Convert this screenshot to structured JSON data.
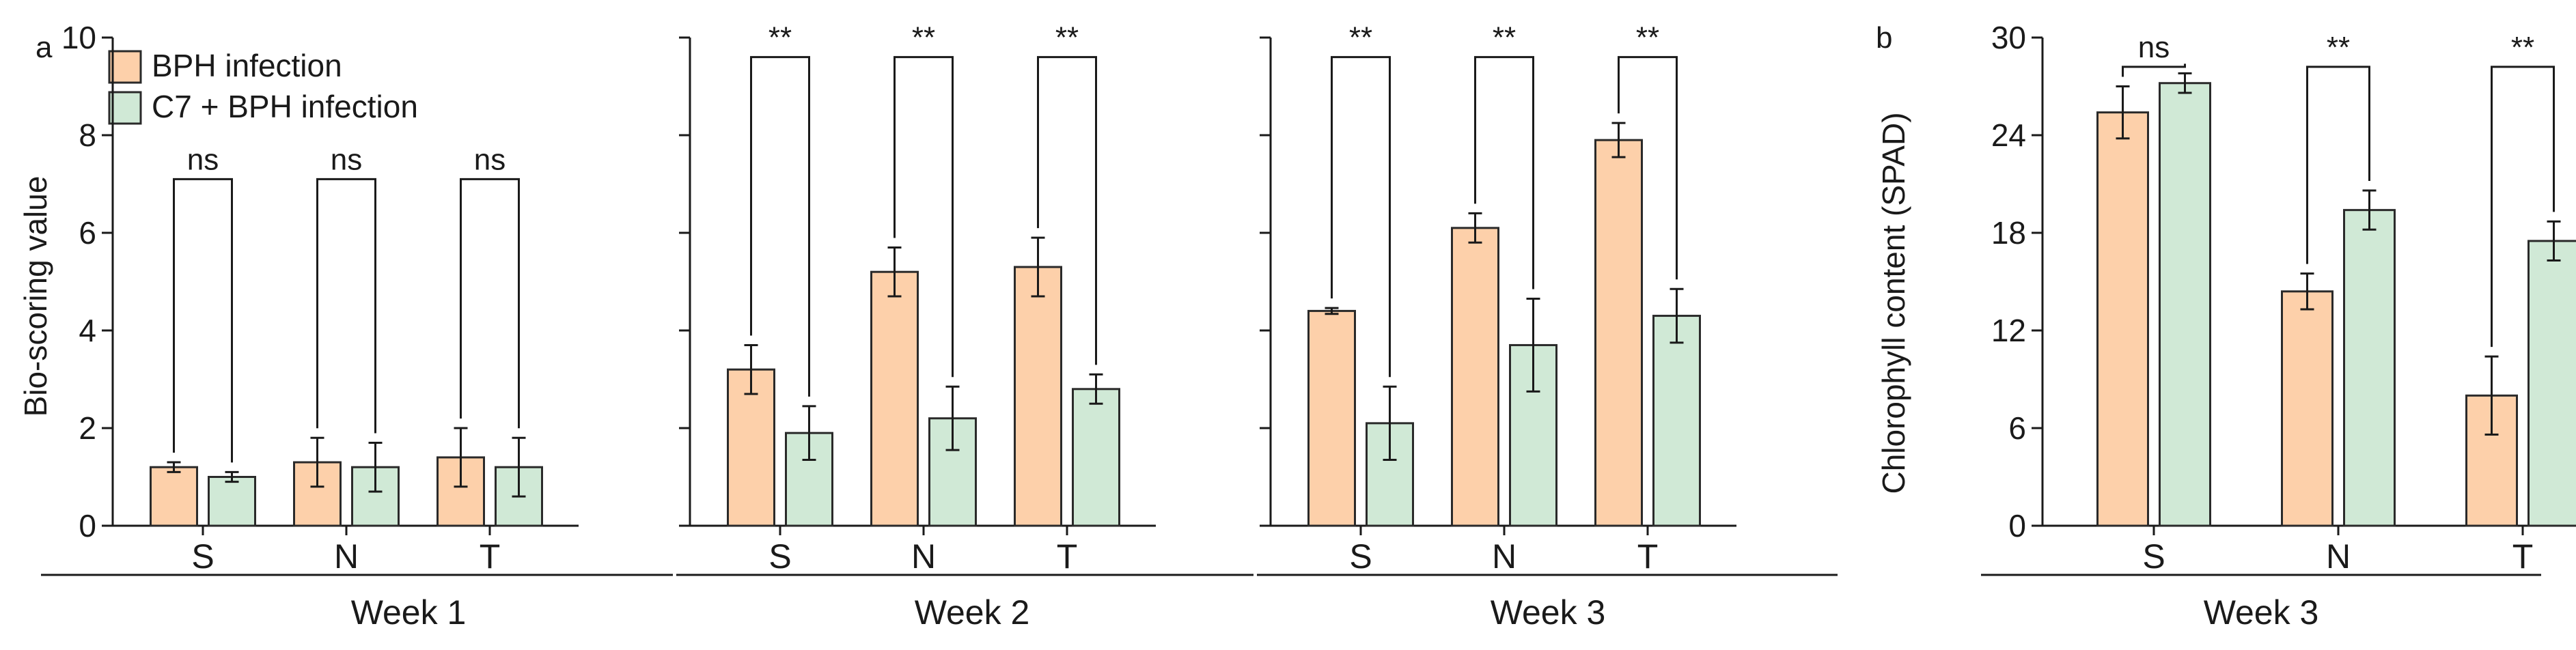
{
  "colors": {
    "bph_fill": "#FDD0AA",
    "c7_fill": "#D0E9D6",
    "bar_stroke": "#2a2a2a",
    "axis": "#1a1a1a"
  },
  "legend": {
    "items": [
      {
        "label": "BPH infection",
        "color": "#FDD0AA"
      },
      {
        "label": "C7 + BPH infection",
        "color": "#D0E9D6"
      }
    ]
  },
  "chart_data": [
    {
      "panel": "a",
      "type": "bar",
      "ylabel": "Bio-scoring value",
      "ylim": [
        0,
        10
      ],
      "yticks": [
        0,
        2,
        4,
        6,
        8,
        10
      ],
      "groups": [
        {
          "label": "Week 1",
          "categories": [
            "S",
            "N",
            "T"
          ],
          "series": [
            {
              "name": "BPH infection",
              "values": [
                1.2,
                1.3,
                1.4
              ],
              "errors": [
                0.1,
                0.5,
                0.6
              ]
            },
            {
              "name": "C7 + BPH infection",
              "values": [
                1.0,
                1.2,
                1.2
              ],
              "errors": [
                0.1,
                0.5,
                0.6
              ]
            }
          ],
          "significance": [
            "ns",
            "ns",
            "ns"
          ],
          "bracket_y": [
            7.1,
            7.1,
            7.1
          ]
        },
        {
          "label": "Week 2",
          "categories": [
            "S",
            "N",
            "T"
          ],
          "series": [
            {
              "name": "BPH infection",
              "values": [
                3.2,
                5.2,
                5.3
              ],
              "errors": [
                0.5,
                0.5,
                0.6
              ]
            },
            {
              "name": "C7 + BPH infection",
              "values": [
                1.9,
                2.2,
                2.8
              ],
              "errors": [
                0.55,
                0.65,
                0.3
              ]
            }
          ],
          "significance": [
            "**",
            "**",
            "**"
          ],
          "bracket_y": [
            9.6,
            9.6,
            9.6
          ]
        },
        {
          "label": "Week 3",
          "categories": [
            "S",
            "N",
            "T"
          ],
          "series": [
            {
              "name": "BPH infection",
              "values": [
                4.4,
                6.1,
                7.9
              ],
              "errors": [
                0.06,
                0.3,
                0.35
              ]
            },
            {
              "name": "C7 + BPH infection",
              "values": [
                2.1,
                3.7,
                4.3
              ],
              "errors": [
                0.75,
                0.95,
                0.55
              ]
            }
          ],
          "significance": [
            "**",
            "**",
            "**"
          ],
          "bracket_y": [
            9.6,
            9.6,
            9.6
          ]
        }
      ]
    },
    {
      "panel": "b",
      "type": "bar",
      "ylabel": "Chlorophyll content (SPAD)",
      "ylim": [
        0,
        30
      ],
      "yticks": [
        0,
        6,
        12,
        18,
        24,
        30
      ],
      "groups": [
        {
          "label": "Week 3",
          "categories": [
            "S",
            "N",
            "T"
          ],
          "series": [
            {
              "name": "BPH infection",
              "values": [
                25.4,
                14.4,
                8.0
              ],
              "errors": [
                1.6,
                1.1,
                2.4
              ]
            },
            {
              "name": "C7 + BPH infection",
              "values": [
                27.2,
                19.4,
                17.5
              ],
              "errors": [
                0.6,
                1.2,
                1.2
              ]
            }
          ],
          "significance": [
            "ns",
            "**",
            "**"
          ],
          "bracket_y": [
            28.2,
            28.2,
            28.2
          ]
        }
      ]
    }
  ]
}
